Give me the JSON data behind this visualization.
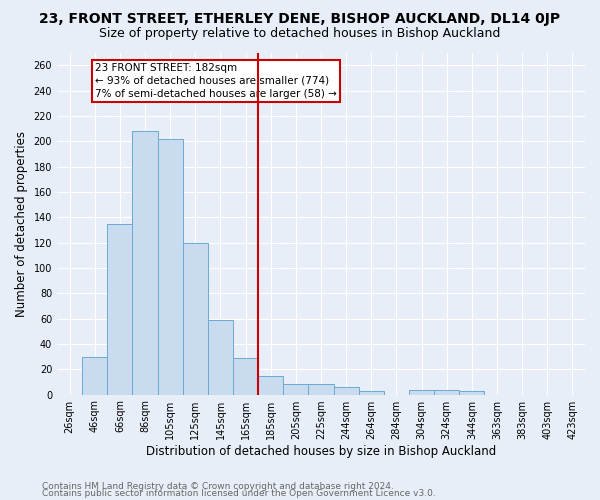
{
  "title": "23, FRONT STREET, ETHERLEY DENE, BISHOP AUCKLAND, DL14 0JP",
  "subtitle": "Size of property relative to detached houses in Bishop Auckland",
  "xlabel": "Distribution of detached houses by size in Bishop Auckland",
  "ylabel": "Number of detached properties",
  "bar_labels": [
    "26sqm",
    "46sqm",
    "66sqm",
    "86sqm",
    "105sqm",
    "125sqm",
    "145sqm",
    "165sqm",
    "185sqm",
    "205sqm",
    "225sqm",
    "244sqm",
    "264sqm",
    "284sqm",
    "304sqm",
    "324sqm",
    "344sqm",
    "363sqm",
    "383sqm",
    "403sqm",
    "423sqm"
  ],
  "bar_values": [
    0,
    30,
    135,
    208,
    202,
    120,
    59,
    29,
    15,
    8,
    8,
    6,
    3,
    0,
    4,
    4,
    3,
    0,
    0,
    0,
    0
  ],
  "bar_color": "#c9dbef",
  "bar_edge_color": "#6aaad4",
  "reference_line_color": "#cc0000",
  "annotation_text": "23 FRONT STREET: 182sqm\n← 93% of detached houses are smaller (774)\n7% of semi-detached houses are larger (58) →",
  "annotation_box_color": "#cc0000",
  "ylim": [
    0,
    270
  ],
  "yticks": [
    0,
    20,
    40,
    60,
    80,
    100,
    120,
    140,
    160,
    180,
    200,
    220,
    240,
    260
  ],
  "footer_line1": "Contains HM Land Registry data © Crown copyright and database right 2024.",
  "footer_line2": "Contains public sector information licensed under the Open Government Licence v3.0.",
  "bg_color": "#e8eef8",
  "grid_color": "#ffffff",
  "title_fontsize": 10,
  "subtitle_fontsize": 9,
  "axis_label_fontsize": 8.5,
  "tick_fontsize": 7,
  "footer_fontsize": 6.5,
  "ref_bar_index": 8
}
